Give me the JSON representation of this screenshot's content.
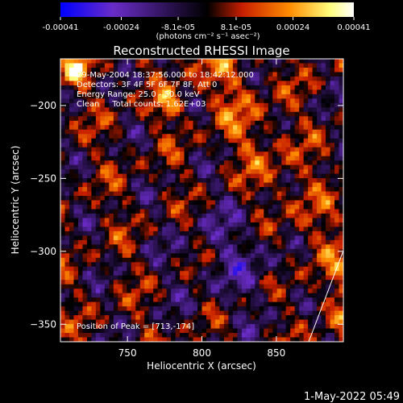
{
  "chart_data": {
    "type": "heatmap",
    "title": "Reconstructed RHESSI Image",
    "xlabel": "Heliocentric X (arcsec)",
    "ylabel": "Heliocentric Y (arcsec)",
    "xlim": [
      705,
      895
    ],
    "ylim": [
      -362,
      -168
    ],
    "x_ticks": [
      750,
      800,
      850
    ],
    "y_ticks": [
      -200,
      -250,
      -300,
      -350
    ],
    "colorbar": {
      "tick_values": [
        -0.00041,
        -0.00024,
        -8.1e-05,
        8.1e-05,
        0.00024,
        0.00041
      ],
      "tick_labels": [
        "-0.00041",
        "-0.00024",
        "-8.1e-05",
        "8.1e-05",
        "0.00024",
        "0.00041"
      ],
      "range": [
        -0.00041,
        0.00041
      ],
      "unit_label": "(photons cm⁻² s⁻¹ asec⁻²)",
      "colormap": [
        "#0000ff",
        "#6a2cc8",
        "#000000",
        "#c81e00",
        "#ff8c00",
        "#ffff80",
        "#ffffff"
      ]
    },
    "annotations": {
      "time": "29-May-2004 18:37:56.000 to 18:42:12.000",
      "detectors": "Detectors: 3F 4F 5F 6F 7F 8F, Att 0",
      "energy": "Energy Range: 25.0 - 50.0 keV",
      "clean": "Clean     Total counts: 1.62E+03",
      "peak": "Position of Peak = [713,-174]"
    },
    "peak_position": [
      713,
      -174
    ],
    "grid": false
  },
  "footer": {
    "timestamp": "1-May-2022 05:49"
  }
}
